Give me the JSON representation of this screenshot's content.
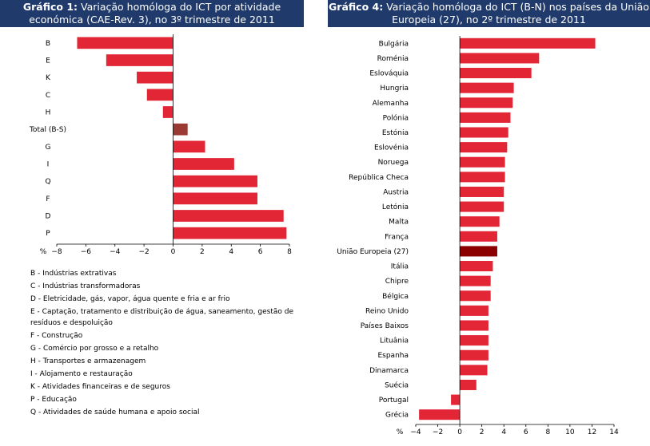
{
  "chart_data": [
    {
      "type": "bar",
      "orientation": "horizontal",
      "title_bold": "Gráfico 1:",
      "title": "Variação homóloga do ICT por atividade económica (CAE-Rev. 3), no 3º trimestre de 2011",
      "axis_unit": "%",
      "categories": [
        "B",
        "E",
        "K",
        "C",
        "H",
        "Total (B-S)",
        "G",
        "I",
        "Q",
        "F",
        "D",
        "P"
      ],
      "values": [
        -6.6,
        -4.6,
        -2.5,
        -1.8,
        -0.7,
        1.0,
        2.2,
        4.2,
        5.8,
        5.8,
        7.6,
        7.8
      ],
      "highlight": "Total (B-S)",
      "xlim": [
        -8,
        8
      ],
      "xticks": [
        -8,
        -6,
        -4,
        -2,
        0,
        2,
        4,
        6,
        8
      ],
      "colors": {
        "bar": "#e32636",
        "highlight": "#9b3a33"
      }
    },
    {
      "type": "bar",
      "orientation": "horizontal",
      "title_bold": "Gráfico 4:",
      "title": "Variação homóloga do ICT (B-N) nos países da União Europeia (27), no 2º trimestre de 2011",
      "axis_unit": "%",
      "categories": [
        "Bulgária",
        "Roménia",
        "Eslováquia",
        "Hungria",
        "Alemanha",
        "Polónia",
        "Estónia",
        "Eslovénia",
        "Noruega",
        "República Checa",
        "Austria",
        "Letónia",
        "Malta",
        "França",
        "União Europeia (27)",
        "Itália",
        "Chipre",
        "Bélgica",
        "Reino Unido",
        "Países Baixos",
        "Lituânia",
        "Espanha",
        "Dinamarca",
        "Suécia",
        "Portugal",
        "Grécia"
      ],
      "values": [
        12.3,
        7.2,
        6.5,
        4.9,
        4.8,
        4.6,
        4.4,
        4.3,
        4.1,
        4.1,
        4.0,
        4.0,
        3.6,
        3.4,
        3.4,
        3.0,
        2.8,
        2.8,
        2.6,
        2.6,
        2.6,
        2.6,
        2.5,
        1.5,
        -0.8,
        -3.7
      ],
      "highlight": "União Europeia (27)",
      "xlim": [
        -4,
        14
      ],
      "xticks": [
        -4,
        -2,
        0,
        2,
        4,
        6,
        8,
        10,
        12,
        14
      ],
      "colors": {
        "bar": "#e32636",
        "highlight": "#8b0000"
      }
    }
  ],
  "legend": [
    "B - Indústrias extrativas",
    "C - Indústrias transformadoras",
    "D - Eletricidade, gás, vapor, água quente e fria e ar frio",
    "E - Captação, tratamento e distribuição de água, saneamento, gestão de resíduos e despoluição",
    "F - Construção",
    "G - Comércio por grosso e a retalho",
    "H - Transportes e armazenagem",
    "I - Alojamento e restauração",
    "K - Atividades financeiras e de seguros",
    "P - Educação",
    "Q - Atividades de saúde humana e apoio social"
  ]
}
